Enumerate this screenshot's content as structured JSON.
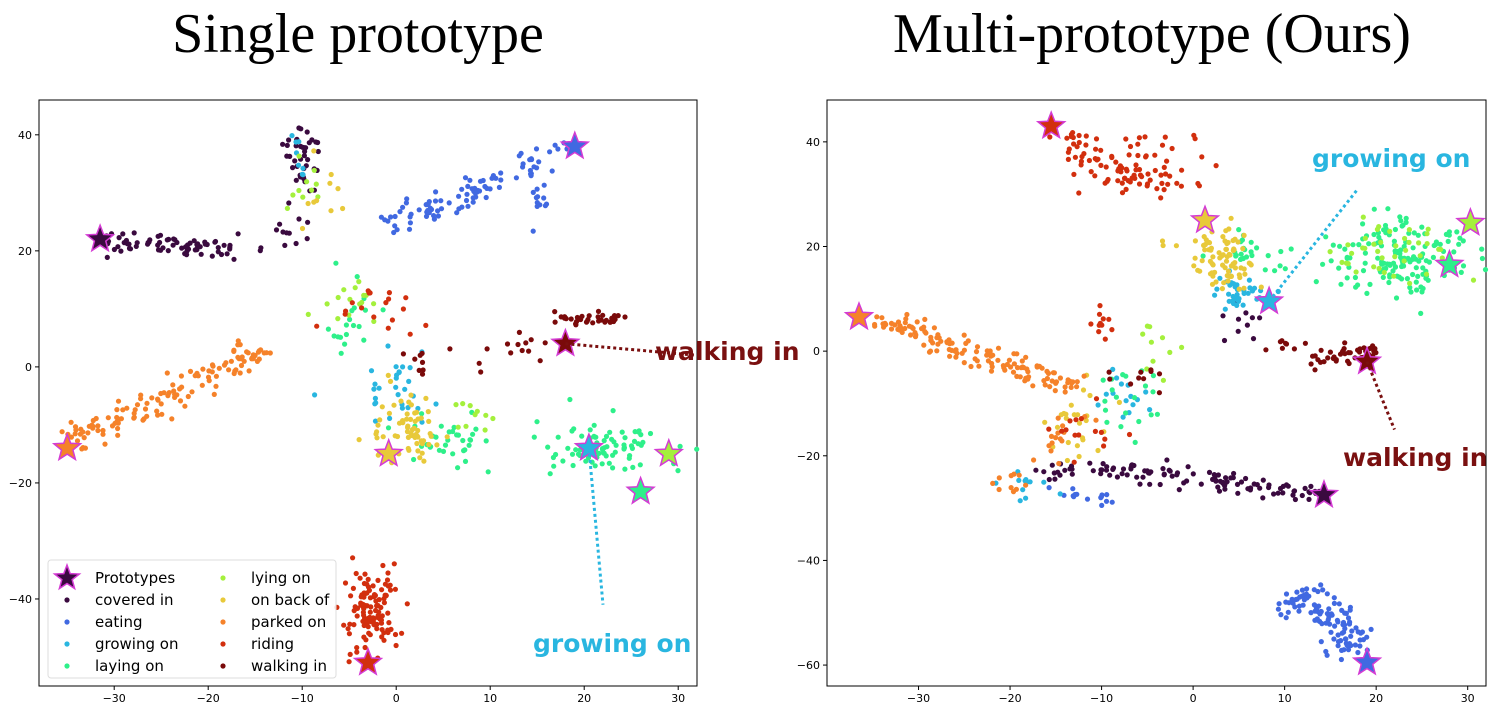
{
  "chart_data": [
    {
      "type": "scatter",
      "title": "Single prototype",
      "xlabel": "",
      "ylabel": "",
      "xlim": [
        -38,
        32
      ],
      "ylim": [
        -55,
        46
      ],
      "xticks": [
        -30,
        -20,
        -10,
        0,
        10,
        20,
        30
      ],
      "yticks": [
        -40,
        -20,
        0,
        20,
        40
      ],
      "legend": {
        "position": "bottom-left",
        "entries": [
          "Prototypes",
          "covered in",
          "eating",
          "growing on",
          "laying on",
          "lying on",
          "on back of",
          "parked on",
          "riding",
          "walking in"
        ]
      },
      "series": [
        {
          "name": "covered in",
          "color": "#3a0a3f",
          "clusters": [
            {
              "type": "line",
              "from": [
                -31,
                22
              ],
              "to": [
                -17,
                20.5
              ],
              "n": 70,
              "spread": 0.9
            },
            {
              "type": "blob",
              "center": [
                -10,
                36
              ],
              "r": [
                2,
                6
              ],
              "n": 40
            },
            {
              "type": "blob",
              "center": [
                -12,
                23
              ],
              "r": [
                3,
                3
              ],
              "n": 12
            }
          ]
        },
        {
          "name": "eating",
          "color": "#4169e1",
          "clusters": [
            {
              "type": "line",
              "from": [
                -1,
                24
              ],
              "to": [
                19,
                38
              ],
              "n": 95,
              "spread": 1.1
            },
            {
              "type": "blob",
              "center": [
                15,
                29
              ],
              "r": [
                1.5,
                3
              ],
              "n": 12
            }
          ]
        },
        {
          "name": "growing on",
          "color": "#29b6e0",
          "clusters": [
            {
              "type": "blob",
              "center": [
                0,
                -3
              ],
              "r": [
                4,
                5
              ],
              "n": 30
            },
            {
              "type": "blob",
              "center": [
                -10,
                37
              ],
              "r": [
                1.5,
                4
              ],
              "n": 8
            }
          ]
        },
        {
          "name": "laying on",
          "color": "#2ef08a",
          "clusters": [
            {
              "type": "blob",
              "center": [
                22,
                -14
              ],
              "r": [
                6,
                4
              ],
              "n": 85
            },
            {
              "type": "blob",
              "center": [
                6,
                -13
              ],
              "r": [
                4,
                4
              ],
              "n": 35
            },
            {
              "type": "blob",
              "center": [
                -5,
                8
              ],
              "r": [
                3,
                6
              ],
              "n": 20
            }
          ]
        },
        {
          "name": "lying on",
          "color": "#a4f03c",
          "clusters": [
            {
              "type": "blob",
              "center": [
                -5,
                12
              ],
              "r": [
                3,
                4
              ],
              "n": 15
            },
            {
              "type": "blob",
              "center": [
                8,
                -8
              ],
              "r": [
                3,
                3
              ],
              "n": 10
            },
            {
              "type": "blob",
              "center": [
                -10,
                32
              ],
              "r": [
                2,
                4
              ],
              "n": 10
            }
          ]
        },
        {
          "name": "on back of",
          "color": "#e8c93a",
          "clusters": [
            {
              "type": "blob",
              "center": [
                1,
                -11
              ],
              "r": [
                4,
                5
              ],
              "n": 65
            },
            {
              "type": "blob",
              "center": [
                -8,
                30
              ],
              "r": [
                2,
                4
              ],
              "n": 10
            }
          ]
        },
        {
          "name": "parked on",
          "color": "#f5822a",
          "clusters": [
            {
              "type": "line",
              "from": [
                -34.5,
                -13
              ],
              "to": [
                -14,
                3
              ],
              "n": 130,
              "spread": 1.2
            }
          ]
        },
        {
          "name": "riding",
          "color": "#d22f0e",
          "clusters": [
            {
              "type": "blob",
              "center": [
                -2.5,
                -42
              ],
              "r": [
                2.5,
                7
              ],
              "n": 120
            },
            {
              "type": "blob",
              "center": [
                -2,
                11
              ],
              "r": [
                5,
                5
              ],
              "n": 18
            }
          ]
        },
        {
          "name": "walking in",
          "color": "#7a0a0a",
          "clusters": [
            {
              "type": "line",
              "from": [
                17,
                8.5
              ],
              "to": [
                25,
                8
              ],
              "n": 35,
              "spread": 0.5
            },
            {
              "type": "blob",
              "center": [
                14,
                4
              ],
              "r": [
                2,
                2
              ],
              "n": 10
            },
            {
              "type": "blob",
              "center": [
                5,
                1
              ],
              "r": [
                6,
                3
              ],
              "n": 12
            }
          ]
        }
      ],
      "prototypes": [
        {
          "x": -31.5,
          "y": 22,
          "color": "#3a0a3f"
        },
        {
          "x": 19,
          "y": 38,
          "color": "#4169e1"
        },
        {
          "x": 20.5,
          "y": -14,
          "color": "#29b6e0"
        },
        {
          "x": 26,
          "y": -21.5,
          "color": "#2ef08a"
        },
        {
          "x": 29,
          "y": -15,
          "color": "#a4f03c"
        },
        {
          "x": -0.8,
          "y": -15,
          "color": "#e8c93a"
        },
        {
          "x": -35,
          "y": -14,
          "color": "#f5822a"
        },
        {
          "x": -3,
          "y": -51,
          "color": "#d22f0e"
        },
        {
          "x": 18,
          "y": 4,
          "color": "#7a0a0a"
        }
      ],
      "annotations": [
        {
          "text": "walking in",
          "color": "#7a1010",
          "anchor": [
            18,
            4
          ],
          "label_at": [
            32,
            2
          ]
        },
        {
          "text": "growing on",
          "color": "#29b6e0",
          "anchor": [
            20.5,
            -14
          ],
          "label_at": [
            22,
            -41
          ]
        }
      ]
    },
    {
      "type": "scatter",
      "title": "Multi-prototype (Ours)",
      "xlabel": "",
      "ylabel": "",
      "xlim": [
        -40,
        32
      ],
      "ylim": [
        -64,
        48
      ],
      "xticks": [
        -30,
        -20,
        -10,
        0,
        10,
        20,
        30
      ],
      "yticks": [
        -60,
        -40,
        -20,
        0,
        20,
        40
      ],
      "series": [
        {
          "name": "covered in",
          "color": "#3a0a3f",
          "clusters": [
            {
              "type": "line",
              "from": [
                -11,
                -22
              ],
              "to": [
                14,
                -27
              ],
              "n": 100,
              "spread": 0.9
            },
            {
              "type": "line",
              "from": [
                -17,
                -24
              ],
              "to": [
                -11,
                -22
              ],
              "n": 15,
              "spread": 0.8
            },
            {
              "type": "blob",
              "center": [
                6,
                5
              ],
              "r": [
                4,
                3
              ],
              "n": 10
            }
          ]
        },
        {
          "name": "eating",
          "color": "#4169e1",
          "clusters": [
            {
              "type": "line",
              "from": [
                11,
                -46
              ],
              "to": [
                19,
                -58
              ],
              "n": 110,
              "spread": 1.6
            },
            {
              "type": "line",
              "from": [
                -16,
                -26
              ],
              "to": [
                -9,
                -29
              ],
              "n": 15,
              "spread": 0.5
            }
          ]
        },
        {
          "name": "growing on",
          "color": "#29b6e0",
          "clusters": [
            {
              "type": "blob",
              "center": [
                5,
                11
              ],
              "r": [
                3,
                2.5
              ],
              "n": 35
            },
            {
              "type": "blob",
              "center": [
                -8,
                -8
              ],
              "r": [
                3,
                5
              ],
              "n": 15
            },
            {
              "type": "blob",
              "center": [
                -19,
                -26
              ],
              "r": [
                3,
                2.5
              ],
              "n": 12
            }
          ]
        },
        {
          "name": "laying on",
          "color": "#2ef08a",
          "clusters": [
            {
              "type": "blob",
              "center": [
                23,
                18
              ],
              "r": [
                6,
                6
              ],
              "n": 150
            },
            {
              "type": "blob",
              "center": [
                7,
                19
              ],
              "r": [
                4,
                4
              ],
              "n": 25
            },
            {
              "type": "blob",
              "center": [
                -7,
                -10
              ],
              "r": [
                3,
                6
              ],
              "n": 20
            }
          ]
        },
        {
          "name": "lying on",
          "color": "#a4f03c",
          "clusters": [
            {
              "type": "blob",
              "center": [
                22,
                19
              ],
              "r": [
                5,
                5
              ],
              "n": 40
            },
            {
              "type": "blob",
              "center": [
                -4,
                0
              ],
              "r": [
                3,
                5
              ],
              "n": 10
            }
          ]
        },
        {
          "name": "on back of",
          "color": "#e8c93a",
          "clusters": [
            {
              "type": "blob",
              "center": [
                3,
                18
              ],
              "r": [
                4,
                5
              ],
              "n": 80
            },
            {
              "type": "blob",
              "center": [
                -13,
                -14
              ],
              "r": [
                3,
                6
              ],
              "n": 25
            }
          ]
        },
        {
          "name": "parked on",
          "color": "#f5822a",
          "clusters": [
            {
              "type": "line",
              "from": [
                -35,
                6.5
              ],
              "to": [
                -13,
                -7
              ],
              "n": 140,
              "spread": 1.1
            },
            {
              "type": "line",
              "from": [
                -22,
                -28
              ],
              "to": [
                -12,
                -12
              ],
              "n": 25,
              "spread": 1.2
            }
          ]
        },
        {
          "name": "riding",
          "color": "#d22f0e",
          "clusters": [
            {
              "type": "line",
              "from": [
                -15,
                42
              ],
              "to": [
                -6,
                31
              ],
              "n": 60,
              "spread": 1.6
            },
            {
              "type": "blob",
              "center": [
                -4,
                35
              ],
              "r": [
                5,
                5
              ],
              "n": 40
            },
            {
              "type": "blob",
              "center": [
                -10,
                5
              ],
              "r": [
                1,
                3
              ],
              "n": 12
            },
            {
              "type": "blob",
              "center": [
                -12,
                -16
              ],
              "r": [
                5,
                5
              ],
              "n": 15
            }
          ]
        },
        {
          "name": "walking in",
          "color": "#7a0a0a",
          "clusters": [
            {
              "type": "line",
              "from": [
                13,
                -2
              ],
              "to": [
                20,
                0.5
              ],
              "n": 40,
              "spread": 0.8
            },
            {
              "type": "blob",
              "center": [
                -6,
                -5
              ],
              "r": [
                3,
                2
              ],
              "n": 10
            },
            {
              "type": "blob",
              "center": [
                10,
                1
              ],
              "r": [
                2,
                1
              ],
              "n": 8
            }
          ]
        }
      ],
      "prototypes": [
        {
          "x": -15.5,
          "y": 43,
          "color": "#d22f0e"
        },
        {
          "x": 1.3,
          "y": 25,
          "color": "#e8c93a"
        },
        {
          "x": 8.3,
          "y": 9.5,
          "color": "#29b6e0"
        },
        {
          "x": 30.3,
          "y": 24.5,
          "color": "#a4f03c"
        },
        {
          "x": 28,
          "y": 16.5,
          "color": "#2ef08a"
        },
        {
          "x": -36.5,
          "y": 6.5,
          "color": "#f5822a"
        },
        {
          "x": 19,
          "y": -2,
          "color": "#7a0a0a"
        },
        {
          "x": 14.3,
          "y": -27.5,
          "color": "#3a0a3f"
        },
        {
          "x": 19,
          "y": -59.5,
          "color": "#4169e1"
        }
      ],
      "annotations": [
        {
          "text": "growing on",
          "color": "#29b6e0",
          "anchor": [
            8.3,
            9.5
          ],
          "label_at": [
            18,
            31
          ]
        },
        {
          "text": "walking in",
          "color": "#7a1010",
          "anchor": [
            19,
            -2
          ],
          "label_at": [
            22,
            -15
          ]
        }
      ]
    }
  ]
}
